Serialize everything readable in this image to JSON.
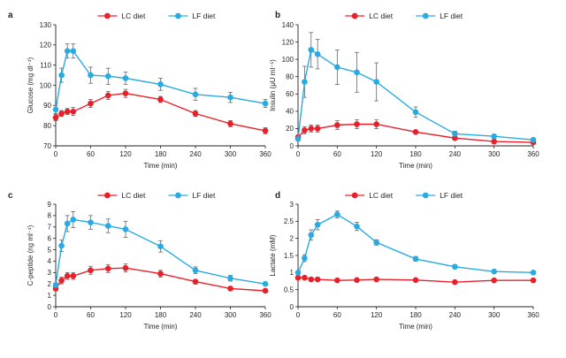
{
  "chart_data": [
    {
      "type": "line",
      "panel": "a",
      "title": "",
      "xlabel": "Time (min)",
      "ylabel": "Glucose (mg dl⁻¹)",
      "xlim": [
        0,
        360
      ],
      "ylim": [
        70,
        130
      ],
      "xticks": [
        0,
        60,
        120,
        180,
        240,
        300,
        360
      ],
      "yticks": [
        70,
        80,
        90,
        100,
        110,
        120,
        130
      ],
      "x": [
        0,
        10,
        20,
        30,
        60,
        90,
        120,
        180,
        240,
        300,
        360
      ],
      "legend_position": "top",
      "series": [
        {
          "name": "LC diet",
          "color": "#e8202a",
          "values": [
            84,
            86,
            87,
            87,
            91,
            95,
            96,
            93,
            86,
            81,
            77.5
          ],
          "errors": [
            1.5,
            1.5,
            1.5,
            2,
            2,
            2,
            2,
            1.5,
            1.5,
            1.5,
            1.5
          ]
        },
        {
          "name": "LF diet",
          "color": "#29abe2",
          "values": [
            88,
            105,
            117,
            117,
            105,
            104.5,
            103.5,
            100.5,
            95.5,
            94,
            91
          ],
          "errors": [
            2,
            3.5,
            3.5,
            3.5,
            4,
            4,
            3,
            3,
            3,
            2.5,
            2
          ]
        }
      ]
    },
    {
      "type": "line",
      "panel": "b",
      "title": "",
      "xlabel": "Time (min)",
      "ylabel": "Insulin (μU ml⁻¹)",
      "xlim": [
        0,
        360
      ],
      "ylim": [
        0,
        140
      ],
      "xticks": [
        0,
        60,
        120,
        180,
        240,
        300,
        360
      ],
      "yticks": [
        0,
        20,
        40,
        60,
        80,
        100,
        120,
        140
      ],
      "x": [
        0,
        10,
        20,
        30,
        60,
        90,
        120,
        180,
        240,
        300,
        360
      ],
      "legend_position": "top",
      "series": [
        {
          "name": "LC diet",
          "color": "#e8202a",
          "values": [
            10,
            18,
            20,
            20,
            24,
            25,
            25,
            16,
            9,
            5,
            4
          ],
          "errors": [
            2,
            4,
            4,
            4,
            5,
            5,
            5,
            2,
            2,
            1,
            1
          ]
        },
        {
          "name": "LF diet",
          "color": "#29abe2",
          "values": [
            8,
            74,
            111,
            106,
            91,
            85,
            74,
            39,
            14,
            11,
            7
          ],
          "errors": [
            2,
            18,
            20,
            17,
            20,
            23,
            22,
            6,
            3,
            2,
            2
          ]
        }
      ]
    },
    {
      "type": "line",
      "panel": "c",
      "title": "",
      "xlabel": "Time (min)",
      "ylabel": "C-peptide (ng ml⁻¹)",
      "xlim": [
        0,
        360
      ],
      "ylim": [
        0,
        9
      ],
      "xticks": [
        0,
        60,
        120,
        180,
        240,
        300,
        360
      ],
      "yticks": [
        0,
        1,
        2,
        3,
        4,
        5,
        6,
        7,
        8,
        9
      ],
      "x": [
        0,
        10,
        20,
        30,
        60,
        90,
        120,
        180,
        240,
        300,
        360
      ],
      "legend_position": "top",
      "series": [
        {
          "name": "LC diet",
          "color": "#e8202a",
          "values": [
            1.6,
            2.3,
            2.7,
            2.7,
            3.2,
            3.35,
            3.4,
            2.9,
            2.2,
            1.6,
            1.4
          ],
          "errors": [
            0.2,
            0.3,
            0.3,
            0.3,
            0.35,
            0.35,
            0.35,
            0.3,
            0.2,
            0.15,
            0.1
          ]
        },
        {
          "name": "LF diet",
          "color": "#29abe2",
          "values": [
            1.9,
            5.35,
            7.3,
            7.65,
            7.4,
            7.1,
            6.8,
            5.3,
            3.2,
            2.5,
            2.0
          ],
          "errors": [
            0.2,
            0.5,
            0.7,
            0.7,
            0.6,
            0.6,
            0.7,
            0.5,
            0.3,
            0.25,
            0.15
          ]
        }
      ]
    },
    {
      "type": "line",
      "panel": "d",
      "title": "",
      "xlabel": "Time (min)",
      "ylabel": "Lactate (mM)",
      "xlim": [
        0,
        360
      ],
      "ylim": [
        0,
        3
      ],
      "xticks": [
        0,
        60,
        120,
        180,
        240,
        300,
        360
      ],
      "yticks": [
        0,
        0.5,
        1,
        1.5,
        2,
        2.5,
        3
      ],
      "x": [
        0,
        10,
        20,
        30,
        60,
        90,
        120,
        180,
        240,
        300,
        360
      ],
      "legend_position": "top",
      "series": [
        {
          "name": "LC diet",
          "color": "#e8202a",
          "values": [
            0.85,
            0.85,
            0.8,
            0.8,
            0.77,
            0.78,
            0.8,
            0.78,
            0.72,
            0.77,
            0.77
          ],
          "errors": [
            0.03,
            0.03,
            0.03,
            0.03,
            0.03,
            0.03,
            0.03,
            0.03,
            0.03,
            0.03,
            0.03
          ]
        },
        {
          "name": "LF diet",
          "color": "#29abe2",
          "values": [
            1.0,
            1.42,
            2.1,
            2.4,
            2.7,
            2.35,
            1.88,
            1.4,
            1.17,
            1.03,
            1.0
          ],
          "errors": [
            0.05,
            0.1,
            0.15,
            0.15,
            0.1,
            0.12,
            0.08,
            0.07,
            0.06,
            0.05,
            0.04
          ]
        }
      ]
    }
  ]
}
